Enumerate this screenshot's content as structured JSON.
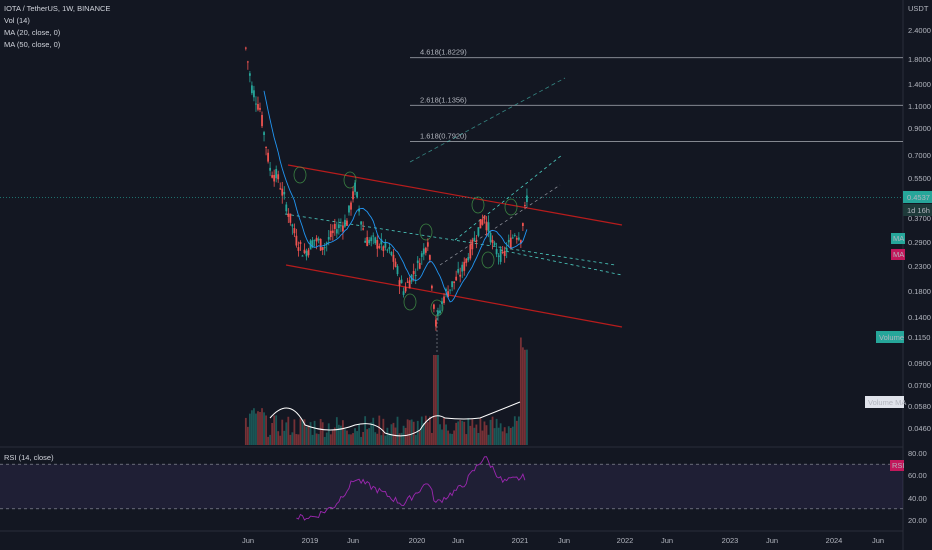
{
  "header": {
    "title": "IOTA / TetherUS, 1W, BINANCE",
    "indicators": [
      "Vol (14)",
      "MA (20, close, 0)",
      "MA (50, close, 0)"
    ]
  },
  "rsi_panel": {
    "title": "RSI (14, close)"
  },
  "badges": {
    "currency": "USDT",
    "last_price": "0.4537",
    "countdown": "1d 16h",
    "ma20": "MA",
    "ma50": "MA",
    "volume": "Volume",
    "volume_ma": "Volume MA",
    "rsi": "RSI"
  },
  "fib_labels": [
    {
      "text": "4.618(1.8229)",
      "value": 1.8229
    },
    {
      "text": "2.618(1.1356)",
      "value": 1.1356
    },
    {
      "text": "1.618(0.7920)",
      "value": 0.792
    }
  ],
  "colors": {
    "background": "#131722",
    "up": "#26a69a",
    "down": "#ef5350",
    "ma20": "#2196f3",
    "ma50": "#ffffff",
    "channel": "#b71c1c",
    "rsi": "#9c27b0",
    "rsi_band": "#7e57c2",
    "target": "#4dd0c4"
  },
  "chart_data": {
    "type": "candlestick",
    "title": "IOTA / TetherUS, 1W, BINANCE",
    "scale": "log",
    "price_axis_ticks": [
      "2.4000",
      "1.8000",
      "1.4000",
      "1.1000",
      "0.9000",
      "0.7000",
      "0.5500",
      "0.3700",
      "0.2900",
      "0.2300",
      "0.1800",
      "0.1400",
      "0.1150",
      "0.0900",
      "0.0700",
      "0.0580",
      "0.0460"
    ],
    "rsi_axis_ticks": [
      "80.00",
      "60.00",
      "40.00",
      "20.00"
    ],
    "time_axis_ticks": [
      "Jun",
      "2019",
      "Jun",
      "2020",
      "Jun",
      "2021",
      "Jun",
      "2022",
      "Jun",
      "2023",
      "Jun",
      "2024",
      "Jun"
    ],
    "last_price": 0.4537,
    "fibonacci_extensions": [
      {
        "level": 4.618,
        "price": 1.8229
      },
      {
        "level": 2.618,
        "price": 1.1356
      },
      {
        "level": 1.618,
        "price": 0.792
      }
    ],
    "price_path": [
      {
        "date": "2018-05-28",
        "price": 2.0
      },
      {
        "date": "2018-06-18",
        "price": 1.35
      },
      {
        "date": "2018-07-16",
        "price": 1.1
      },
      {
        "date": "2018-08-20",
        "price": 0.6
      },
      {
        "date": "2018-09-17",
        "price": 0.55
      },
      {
        "date": "2018-11-19",
        "price": 0.3
      },
      {
        "date": "2018-12-17",
        "price": 0.26
      },
      {
        "date": "2019-01-21",
        "price": 0.3
      },
      {
        "date": "2019-02-25",
        "price": 0.28
      },
      {
        "date": "2019-04-01",
        "price": 0.33
      },
      {
        "date": "2019-05-13",
        "price": 0.36
      },
      {
        "date": "2019-06-10",
        "price": 0.5
      },
      {
        "date": "2019-07-15",
        "price": 0.3
      },
      {
        "date": "2019-08-26",
        "price": 0.29
      },
      {
        "date": "2019-10-14",
        "price": 0.26
      },
      {
        "date": "2019-11-25",
        "price": 0.18
      },
      {
        "date": "2020-01-13",
        "price": 0.23
      },
      {
        "date": "2020-02-17",
        "price": 0.3
      },
      {
        "date": "2020-03-16",
        "price": 0.13
      },
      {
        "date": "2020-04-13",
        "price": 0.17
      },
      {
        "date": "2020-06-15",
        "price": 0.22
      },
      {
        "date": "2020-08-10",
        "price": 0.33
      },
      {
        "date": "2020-08-31",
        "price": 0.38
      },
      {
        "date": "2020-10-05",
        "price": 0.27
      },
      {
        "date": "2020-11-02",
        "price": 0.25
      },
      {
        "date": "2020-12-14",
        "price": 0.32
      },
      {
        "date": "2021-01-04",
        "price": 0.31
      },
      {
        "date": "2021-01-25",
        "price": 0.4537
      }
    ],
    "rsi_path": [
      {
        "date": "2018-11-19",
        "rsi": 22
      },
      {
        "date": "2019-01-21",
        "rsi": 23
      },
      {
        "date": "2019-04-01",
        "rsi": 33
      },
      {
        "date": "2019-06-10",
        "rsi": 57
      },
      {
        "date": "2019-08-26",
        "rsi": 47
      },
      {
        "date": "2019-11-25",
        "rsi": 34
      },
      {
        "date": "2020-02-17",
        "rsi": 54
      },
      {
        "date": "2020-03-16",
        "rsi": 35
      },
      {
        "date": "2020-06-15",
        "rsi": 50
      },
      {
        "date": "2020-08-31",
        "rsi": 77
      },
      {
        "date": "2020-11-02",
        "rsi": 54
      },
      {
        "date": "2021-01-25",
        "rsi": 59
      }
    ],
    "rsi_bands": [
      70,
      30
    ]
  }
}
